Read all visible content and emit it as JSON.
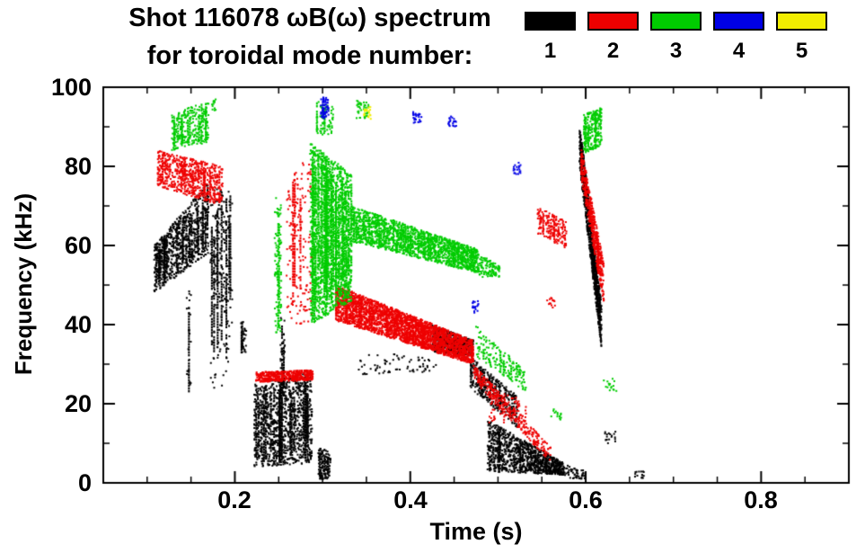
{
  "header": {
    "title_line1": "Shot 116078 ωB(ω) spectrum",
    "title_line2": "for toroidal mode number:",
    "legend": [
      {
        "label": "1",
        "color": "#000000"
      },
      {
        "label": "2",
        "color": "#ee0000"
      },
      {
        "label": "3",
        "color": "#00cc00"
      },
      {
        "label": "4",
        "color": "#0000e6"
      },
      {
        "label": "5",
        "color": "#f2ee00"
      }
    ]
  },
  "chart_data": {
    "type": "scatter",
    "title": "Shot 116078 ωB(ω) spectrum for toroidal mode number: 1-5",
    "xlabel": "Time (s)",
    "ylabel": "Frequency (kHz)",
    "xlim": [
      0.05,
      0.9
    ],
    "ylim": [
      0,
      100
    ],
    "grid": false,
    "x_ticks": [
      {
        "v": 0.2,
        "label": "0.2"
      },
      {
        "v": 0.4,
        "label": "0.4"
      },
      {
        "v": 0.6,
        "label": "0.6"
      },
      {
        "v": 0.8,
        "label": "0.8"
      }
    ],
    "y_ticks": [
      {
        "v": 0,
        "label": "0"
      },
      {
        "v": 20,
        "label": "20"
      },
      {
        "v": 40,
        "label": "40"
      },
      {
        "v": 60,
        "label": "60"
      },
      {
        "v": 80,
        "label": "80"
      },
      {
        "v": 100,
        "label": "100"
      }
    ],
    "x_minor_step": 0.05,
    "y_minor_step": 10,
    "series": [
      {
        "name": "n=1",
        "color": "#000000",
        "clusters": [
          {
            "t0": 0.108,
            "t1": 0.17,
            "b0": 48,
            "b1": 58,
            "p0": 60,
            "p1": 76,
            "n": 750,
            "s": 20
          },
          {
            "t0": 0.145,
            "t1": 0.15,
            "b0": 23,
            "b1": 23,
            "p0": 50,
            "p1": 50,
            "n": 25,
            "s": 1
          },
          {
            "t0": 0.172,
            "t1": 0.197,
            "b0": 23,
            "b1": 23,
            "p0": 75,
            "p1": 73,
            "n": 130,
            "s": 5
          },
          {
            "t0": 0.175,
            "t1": 0.195,
            "b0": 45,
            "b1": 45,
            "p0": 74,
            "p1": 74,
            "n": 80,
            "s": 3
          },
          {
            "t0": 0.207,
            "t1": 0.213,
            "b0": 33,
            "b1": 33,
            "p0": 41,
            "p1": 41,
            "n": 35,
            "s": 2
          },
          {
            "t0": 0.252,
            "t1": 0.257,
            "b0": 22,
            "b1": 22,
            "p0": 42,
            "p1": 42,
            "n": 40,
            "s": 2
          },
          {
            "t0": 0.222,
            "t1": 0.288,
            "b0": 4,
            "b1": 5,
            "p0": 25,
            "p1": 28,
            "n": 950,
            "s": 24
          },
          {
            "t0": 0.295,
            "t1": 0.309,
            "b0": 1,
            "b1": 1,
            "p0": 9,
            "p1": 8,
            "n": 110,
            "s": 4
          },
          {
            "t0": 0.34,
            "t1": 0.43,
            "b0": 27,
            "b1": 28,
            "p0": 33,
            "p1": 32,
            "n": 70,
            "s": 0
          },
          {
            "t0": 0.425,
            "t1": 0.472,
            "b0": 33,
            "b1": 32,
            "p0": 40,
            "p1": 36,
            "n": 450,
            "s": 8
          },
          {
            "t0": 0.468,
            "t1": 0.522,
            "b0": 24,
            "b1": 14,
            "p0": 32,
            "p1": 22,
            "n": 330,
            "s": 6
          },
          {
            "t0": 0.488,
            "t1": 0.575,
            "b0": 3,
            "b1": 2,
            "p0": 16,
            "p1": 5,
            "n": 950,
            "s": 14
          },
          {
            "t0": 0.57,
            "t1": 0.6,
            "b0": 1,
            "b1": 1,
            "p0": 5,
            "p1": 3,
            "n": 60,
            "s": 0
          },
          {
            "t0": 0.593,
            "t1": 0.618,
            "b0": 80,
            "b1": 34,
            "p0": 91,
            "p1": 45,
            "n": 850,
            "s": 10
          },
          {
            "t0": 0.622,
            "t1": 0.634,
            "b0": 10,
            "b1": 10,
            "p0": 13,
            "p1": 13,
            "n": 18,
            "s": 0
          },
          {
            "t0": 0.655,
            "t1": 0.668,
            "b0": 1,
            "b1": 1,
            "p0": 3,
            "p1": 3,
            "n": 15,
            "s": 0
          }
        ]
      },
      {
        "name": "n=2",
        "color": "#ee0000",
        "clusters": [
          {
            "t0": 0.112,
            "t1": 0.186,
            "b0": 75,
            "b1": 70,
            "p0": 84,
            "p1": 80,
            "n": 600,
            "s": 12
          },
          {
            "t0": 0.224,
            "t1": 0.289,
            "b0": 25.5,
            "b1": 26,
            "p0": 28,
            "p1": 28.5,
            "n": 430,
            "s": 10
          },
          {
            "t0": 0.259,
            "t1": 0.289,
            "b0": 40,
            "b1": 40,
            "p0": 76,
            "p1": 84,
            "n": 160,
            "s": 3
          },
          {
            "t0": 0.315,
            "t1": 0.472,
            "b0": 41,
            "b1": 30,
            "p0": 50,
            "p1": 36,
            "n": 2500,
            "s": 42
          },
          {
            "t0": 0.472,
            "t1": 0.56,
            "b0": 26,
            "b1": 5,
            "p0": 30,
            "p1": 9,
            "n": 310,
            "s": 6
          },
          {
            "t0": 0.49,
            "t1": 0.532,
            "b0": 15,
            "b1": 15,
            "p0": 26,
            "p1": 20,
            "n": 70,
            "s": 0
          },
          {
            "t0": 0.545,
            "t1": 0.578,
            "b0": 63,
            "b1": 59,
            "p0": 70,
            "p1": 66,
            "n": 170,
            "s": 4
          },
          {
            "t0": 0.556,
            "t1": 0.566,
            "b0": 44,
            "b1": 44,
            "p0": 47,
            "p1": 47,
            "n": 14,
            "s": 0
          },
          {
            "t0": 0.595,
            "t1": 0.621,
            "b0": 76,
            "b1": 45,
            "p0": 85,
            "p1": 55,
            "n": 430,
            "s": 8
          }
        ]
      },
      {
        "name": "n=3",
        "color": "#00cc00",
        "clusters": [
          {
            "t0": 0.128,
            "t1": 0.17,
            "b0": 84,
            "b1": 86,
            "p0": 93,
            "p1": 97,
            "n": 280,
            "s": 10
          },
          {
            "t0": 0.174,
            "t1": 0.179,
            "b0": 94,
            "b1": 94,
            "p0": 97,
            "p1": 97,
            "n": 12,
            "s": 0
          },
          {
            "t0": 0.245,
            "t1": 0.253,
            "b0": 38,
            "b1": 38,
            "p0": 72,
            "p1": 72,
            "n": 90,
            "s": 2
          },
          {
            "t0": 0.286,
            "t1": 0.333,
            "b0": 40,
            "b1": 46,
            "p0": 86,
            "p1": 78,
            "n": 1500,
            "s": 26
          },
          {
            "t0": 0.293,
            "t1": 0.312,
            "b0": 88,
            "b1": 88,
            "p0": 97,
            "p1": 95,
            "n": 60,
            "s": 3
          },
          {
            "t0": 0.333,
            "t1": 0.478,
            "b0": 61,
            "b1": 53,
            "p0": 70,
            "p1": 59,
            "n": 1550,
            "s": 30
          },
          {
            "t0": 0.478,
            "t1": 0.502,
            "b0": 52,
            "b1": 52,
            "p0": 58,
            "p1": 55,
            "n": 110,
            "s": 0
          },
          {
            "t0": 0.475,
            "t1": 0.532,
            "b0": 32,
            "b1": 23,
            "p0": 40,
            "p1": 28,
            "n": 160,
            "s": 4
          },
          {
            "t0": 0.338,
            "t1": 0.353,
            "b0": 92,
            "b1": 92,
            "p0": 97,
            "p1": 96,
            "n": 40,
            "s": 0
          },
          {
            "t0": 0.598,
            "t1": 0.618,
            "b0": 83,
            "b1": 85,
            "p0": 93,
            "p1": 95,
            "n": 230,
            "s": 6
          },
          {
            "t0": 0.56,
            "t1": 0.572,
            "b0": 16,
            "b1": 16,
            "p0": 20,
            "p1": 19,
            "n": 14,
            "s": 0
          },
          {
            "t0": 0.62,
            "t1": 0.636,
            "b0": 23,
            "b1": 23,
            "p0": 27,
            "p1": 26,
            "n": 16,
            "s": 0
          }
        ]
      },
      {
        "name": "n=4",
        "color": "#0000e6",
        "clusters": [
          {
            "t0": 0.298,
            "t1": 0.307,
            "b0": 92,
            "b1": 92,
            "p0": 98,
            "p1": 97,
            "n": 50,
            "s": 2
          },
          {
            "t0": 0.403,
            "t1": 0.413,
            "b0": 91,
            "b1": 91,
            "p0": 94,
            "p1": 93,
            "n": 26,
            "s": 0
          },
          {
            "t0": 0.443,
            "t1": 0.453,
            "b0": 90,
            "b1": 90,
            "p0": 93,
            "p1": 92,
            "n": 22,
            "s": 0
          },
          {
            "t0": 0.471,
            "t1": 0.479,
            "b0": 43,
            "b1": 43,
            "p0": 46,
            "p1": 46,
            "n": 18,
            "s": 0
          },
          {
            "t0": 0.517,
            "t1": 0.526,
            "b0": 78,
            "b1": 78,
            "p0": 81,
            "p1": 81,
            "n": 20,
            "s": 0
          }
        ]
      },
      {
        "name": "n=5",
        "color": "#f2ee00",
        "clusters": [
          {
            "t0": 0.347,
            "t1": 0.355,
            "b0": 92,
            "b1": 92,
            "p0": 95,
            "p1": 95,
            "n": 22,
            "s": 0
          }
        ]
      }
    ]
  }
}
